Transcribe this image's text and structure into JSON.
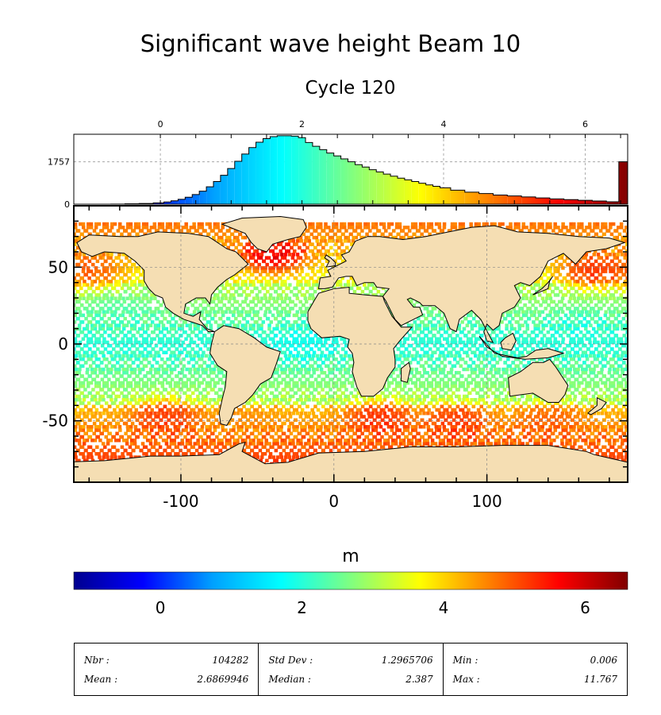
{
  "title": "Significant wave height Beam 10",
  "subtitle": "Cycle 120",
  "colorbar": {
    "label": "m",
    "ticks": [
      "0",
      "2",
      "4",
      "6"
    ],
    "stops": [
      "#00008f",
      "#0000ff",
      "#00a0ff",
      "#00ffff",
      "#80ff80",
      "#ffff00",
      "#ff8000",
      "#ff0000",
      "#800000"
    ]
  },
  "chart_data": [
    {
      "type": "bar",
      "title": "",
      "xlabel": "",
      "ylabel": "",
      "x_ticks": [
        "0",
        "2",
        "4",
        "6"
      ],
      "y_ticks": [
        "0",
        "1757"
      ],
      "xlim": [
        -1.2,
        6.6
      ],
      "ylim": [
        0,
        2900
      ],
      "grid": true,
      "x": [
        -0.6,
        -0.4,
        -0.2,
        0.0,
        0.1,
        0.2,
        0.3,
        0.4,
        0.5,
        0.6,
        0.7,
        0.8,
        0.9,
        1.0,
        1.1,
        1.2,
        1.3,
        1.4,
        1.5,
        1.6,
        1.7,
        1.8,
        1.9,
        2.0,
        2.1,
        2.2,
        2.3,
        2.4,
        2.5,
        2.6,
        2.7,
        2.8,
        2.9,
        3.0,
        3.1,
        3.2,
        3.3,
        3.4,
        3.5,
        3.6,
        3.7,
        3.8,
        3.9,
        4.0,
        4.2,
        4.4,
        4.6,
        4.8,
        5.0,
        5.2,
        5.4,
        5.6,
        5.8,
        6.0,
        6.2,
        6.4,
        6.55
      ],
      "values": [
        5,
        15,
        30,
        55,
        90,
        140,
        200,
        290,
        400,
        540,
        720,
        940,
        1200,
        1480,
        1780,
        2080,
        2350,
        2570,
        2720,
        2800,
        2840,
        2840,
        2820,
        2760,
        2560,
        2400,
        2260,
        2120,
        2000,
        1880,
        1760,
        1640,
        1540,
        1430,
        1340,
        1250,
        1160,
        1080,
        1010,
        940,
        870,
        800,
        740,
        680,
        580,
        500,
        440,
        380,
        340,
        300,
        260,
        220,
        190,
        160,
        130,
        100,
        1760
      ]
    },
    {
      "type": "heatmap",
      "title": "",
      "xlabel": "",
      "ylabel": "",
      "x_ticks": [
        "-100",
        "0",
        "100"
      ],
      "y_ticks": [
        "50",
        "0",
        "-50"
      ],
      "xlim": [
        -170,
        192
      ],
      "ylim": [
        -90,
        90
      ],
      "grid": true,
      "value_label": "m",
      "regions": [
        {
          "lon": -40,
          "lat": 58,
          "value": 6.2
        },
        {
          "lon": 170,
          "lat": 48,
          "value": 5.6
        },
        {
          "lon": -160,
          "lat": 48,
          "value": 5.2
        },
        {
          "lon": -110,
          "lat": -47,
          "value": 5.4
        },
        {
          "lon": -60,
          "lat": -52,
          "value": 4.6
        },
        {
          "lon": 30,
          "lat": -48,
          "value": 5.5
        },
        {
          "lon": 80,
          "lat": -50,
          "value": 5.4
        },
        {
          "lon": 140,
          "lat": -50,
          "value": 5.0
        },
        {
          "lon": -20,
          "lat": 0,
          "value": 1.8
        },
        {
          "lon": 160,
          "lat": 10,
          "value": 2.0
        },
        {
          "lon": -140,
          "lat": 20,
          "value": 2.3
        }
      ]
    }
  ],
  "stats": [
    {
      "label1": "Nbr :",
      "value1": "104282",
      "label2": "Mean :",
      "value2": "2.6869946"
    },
    {
      "label1": "Std Dev :",
      "value1": "1.2965706",
      "label2": "Median :",
      "value2": "2.387"
    },
    {
      "label1": "Min :",
      "value1": "0.006",
      "label2": "Max :",
      "value2": "11.767"
    }
  ]
}
